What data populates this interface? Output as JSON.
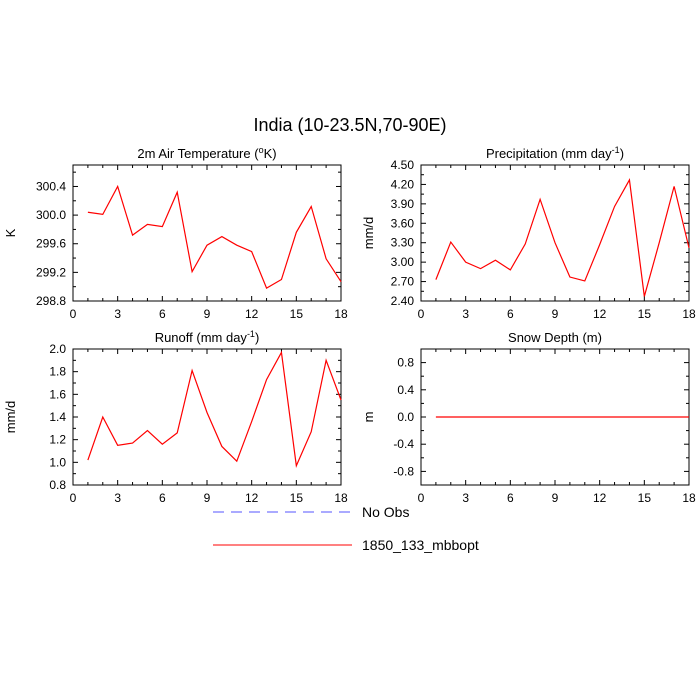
{
  "figure": {
    "title": "India (10-23.5N,70-90E)"
  },
  "legend": {
    "position": "bottom-center",
    "entries": [
      {
        "label": "No Obs",
        "color": "#5555ff",
        "dash": true
      },
      {
        "label": "1850_133_mbbopt",
        "color": "#ff0000",
        "dash": false
      }
    ]
  },
  "chart_data": [
    {
      "type": "line",
      "title_main": "2m Air Temperature (",
      "title_sup": "o",
      "title_end": "K)",
      "ylabel": "K",
      "xlim": [
        0,
        18
      ],
      "ylim": [
        298.8,
        300.7
      ],
      "xticks": [
        0,
        3,
        6,
        9,
        12,
        15,
        18
      ],
      "yticks": [
        298.8,
        299.2,
        299.6,
        300.0,
        300.4
      ],
      "ytick_labels": [
        "298.8",
        "299.2",
        "299.6",
        "300.0",
        "300.4"
      ],
      "series": [
        {
          "name": "1850_133_mbbopt",
          "color": "#ff0000",
          "x": [
            1,
            2,
            3,
            4,
            5,
            6,
            7,
            8,
            9,
            10,
            11,
            12,
            13,
            14,
            15,
            16,
            17,
            18
          ],
          "values": [
            300.04,
            300.01,
            300.4,
            299.72,
            299.87,
            299.84,
            300.32,
            299.21,
            299.58,
            299.7,
            299.58,
            299.49,
            298.98,
            299.1,
            299.76,
            300.12,
            299.39,
            299.07
          ]
        }
      ]
    },
    {
      "type": "line",
      "title_main": "Precipitation (mm day",
      "title_sup": "-1",
      "title_end": ")",
      "ylabel": "mm/d",
      "xlim": [
        0,
        18
      ],
      "ylim": [
        2.4,
        4.5
      ],
      "xticks": [
        0,
        3,
        6,
        9,
        12,
        15,
        18
      ],
      "yticks": [
        2.4,
        2.7,
        3.0,
        3.3,
        3.6,
        3.9,
        4.2,
        4.5
      ],
      "ytick_labels": [
        "2.40",
        "2.70",
        "3.00",
        "3.30",
        "3.60",
        "3.90",
        "4.20",
        "4.50"
      ],
      "series": [
        {
          "name": "1850_133_mbbopt",
          "color": "#ff0000",
          "x": [
            1,
            2,
            3,
            4,
            5,
            6,
            7,
            8,
            9,
            10,
            11,
            12,
            13,
            14,
            15,
            16,
            17,
            18
          ],
          "values": [
            2.73,
            3.31,
            3.0,
            2.9,
            3.03,
            2.88,
            3.28,
            3.97,
            3.3,
            2.77,
            2.71,
            3.27,
            3.86,
            4.27,
            2.47,
            3.3,
            4.17,
            3.22
          ]
        }
      ]
    },
    {
      "type": "line",
      "title_main": "Runoff (mm day",
      "title_sup": "-1",
      "title_end": ")",
      "ylabel": "mm/d",
      "xlim": [
        0,
        18
      ],
      "ylim": [
        0.8,
        2.0
      ],
      "xticks": [
        0,
        3,
        6,
        9,
        12,
        15,
        18
      ],
      "yticks": [
        0.8,
        1.0,
        1.2,
        1.4,
        1.6,
        1.8,
        2.0
      ],
      "ytick_labels": [
        "0.8",
        "1.0",
        "1.2",
        "1.4",
        "1.6",
        "1.8",
        "2.0"
      ],
      "series": [
        {
          "name": "1850_133_mbbopt",
          "color": "#ff0000",
          "x": [
            1,
            2,
            3,
            4,
            5,
            6,
            7,
            8,
            9,
            10,
            11,
            12,
            13,
            14,
            15,
            16,
            17,
            18
          ],
          "values": [
            1.02,
            1.4,
            1.15,
            1.17,
            1.28,
            1.16,
            1.26,
            1.81,
            1.44,
            1.14,
            1.01,
            1.36,
            1.73,
            1.97,
            0.97,
            1.27,
            1.9,
            1.55
          ]
        }
      ]
    },
    {
      "type": "line",
      "title_main": "Snow Depth (m)",
      "title_sup": "",
      "title_end": "",
      "ylabel": "m",
      "xlim": [
        0,
        18
      ],
      "ylim": [
        -1.0,
        1.0
      ],
      "xticks": [
        0,
        3,
        6,
        9,
        12,
        15,
        18
      ],
      "yticks": [
        -0.8,
        -0.4,
        0.0,
        0.4,
        0.8
      ],
      "ytick_labels": [
        "-0.8",
        "-0.4",
        "0.0",
        "0.4",
        "0.8"
      ],
      "series": [
        {
          "name": "1850_133_mbbopt",
          "color": "#ff0000",
          "x": [
            1,
            2,
            3,
            4,
            5,
            6,
            7,
            8,
            9,
            10,
            11,
            12,
            13,
            14,
            15,
            16,
            17,
            18
          ],
          "values": [
            0,
            0,
            0,
            0,
            0,
            0,
            0,
            0,
            0,
            0,
            0,
            0,
            0,
            0,
            0,
            0,
            0,
            0
          ]
        }
      ]
    }
  ]
}
